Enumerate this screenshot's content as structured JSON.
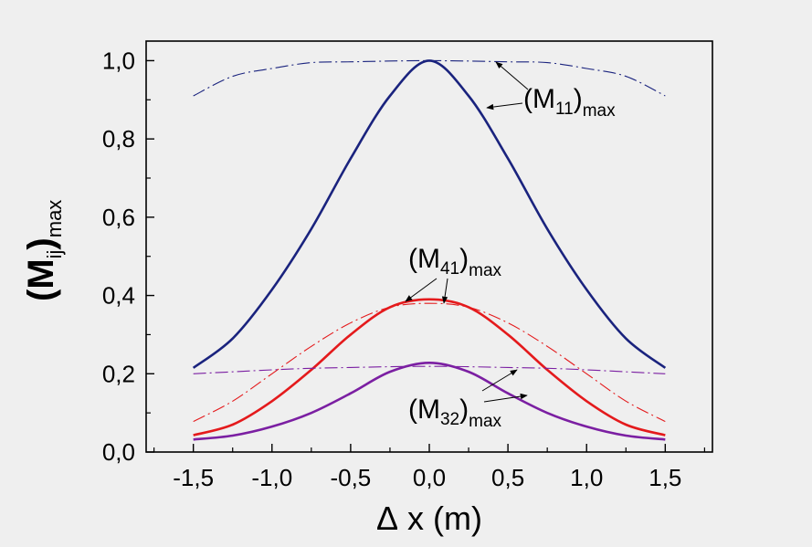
{
  "chart_data": {
    "type": "line",
    "title": "",
    "xlabel": {
      "prefix": "Δ",
      "text": "x (m)"
    },
    "ylabel": {
      "main": "(M",
      "sub": "ij",
      "close": ")",
      "tail": "max"
    },
    "xlim": [
      -1.8,
      1.8
    ],
    "ylim": [
      0.0,
      1.05
    ],
    "xticks": [
      -1.5,
      -1.0,
      -0.5,
      0.0,
      0.5,
      1.0,
      1.5
    ],
    "xtick_labels": [
      "-1,5",
      "-1,0",
      "-0,5",
      "0,0",
      "0,5",
      "1,0",
      "1,5"
    ],
    "yticks": [
      0.0,
      0.2,
      0.4,
      0.6,
      0.8,
      1.0
    ],
    "ytick_labels": [
      "0,0",
      "0,2",
      "0,4",
      "0,6",
      "0,8",
      "1,0"
    ],
    "grid": false,
    "x": [
      -1.5,
      -1.25,
      -1.0,
      -0.75,
      -0.5,
      -0.25,
      0.0,
      0.25,
      0.5,
      0.75,
      1.0,
      1.25,
      1.5
    ],
    "series": [
      {
        "key": "m11_solid",
        "color": "#1a237e",
        "style": "solid",
        "width": 2.6,
        "values": [
          0.215,
          0.29,
          0.415,
          0.57,
          0.75,
          0.91,
          1.0,
          0.91,
          0.75,
          0.57,
          0.415,
          0.29,
          0.215
        ]
      },
      {
        "key": "m11_dashdot",
        "color": "#1a237e",
        "style": "dashdot",
        "width": 1.1,
        "values": [
          0.91,
          0.96,
          0.98,
          0.995,
          0.997,
          0.999,
          1.0,
          0.999,
          0.997,
          0.995,
          0.98,
          0.96,
          0.91
        ]
      },
      {
        "key": "m41_solid",
        "color": "#e41a1c",
        "style": "solid",
        "width": 2.6,
        "values": [
          0.043,
          0.07,
          0.13,
          0.21,
          0.3,
          0.37,
          0.39,
          0.37,
          0.3,
          0.21,
          0.13,
          0.07,
          0.043
        ]
      },
      {
        "key": "m41_dashdot",
        "color": "#e41a1c",
        "style": "dashdot",
        "width": 1.1,
        "values": [
          0.078,
          0.13,
          0.2,
          0.27,
          0.33,
          0.37,
          0.38,
          0.37,
          0.33,
          0.27,
          0.2,
          0.13,
          0.078
        ]
      },
      {
        "key": "m32_solid",
        "color": "#7b1fa2",
        "style": "solid",
        "width": 2.6,
        "values": [
          0.032,
          0.042,
          0.065,
          0.1,
          0.15,
          0.205,
          0.228,
          0.205,
          0.15,
          0.1,
          0.065,
          0.042,
          0.032
        ]
      },
      {
        "key": "m32_dashdot",
        "color": "#7b1fa2",
        "style": "dashdot",
        "width": 1.1,
        "values": [
          0.2,
          0.205,
          0.21,
          0.214,
          0.216,
          0.218,
          0.219,
          0.218,
          0.216,
          0.214,
          0.21,
          0.205,
          0.2
        ]
      }
    ],
    "annotations": [
      {
        "key": "m11",
        "main": "(M",
        "sub": "11",
        "close": ")",
        "tail": "max"
      },
      {
        "key": "m41",
        "main": "(M",
        "sub": "41",
        "close": ")",
        "tail": "max"
      },
      {
        "key": "m32",
        "main": "(M",
        "sub": "32",
        "close": ")",
        "tail": "max"
      }
    ]
  }
}
